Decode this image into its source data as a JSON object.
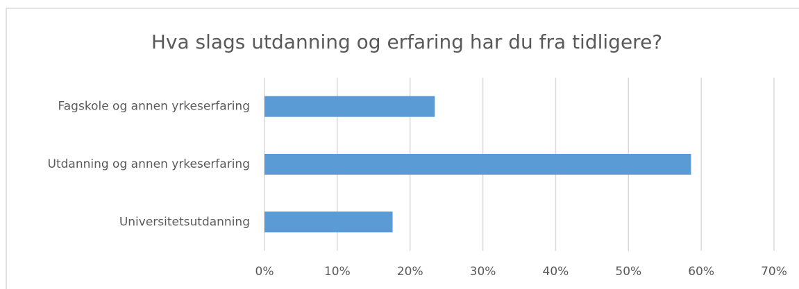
{
  "chart_data": {
    "type": "bar",
    "orientation": "horizontal",
    "title": "Hva slags utdanning og erfaring har du fra tidligere?",
    "categories": [
      "Fagskole og annen yrkeserfaring",
      "Utdanning og annen yrkeserfaring",
      "Universitetsutdanning"
    ],
    "values": [
      23.4,
      58.6,
      17.6
    ],
    "color": "#5b9bd5",
    "xlim": [
      0,
      70
    ],
    "xticks": [
      {
        "value": 0,
        "label": "0%"
      },
      {
        "value": 10,
        "label": "10%"
      },
      {
        "value": 20,
        "label": "20%"
      },
      {
        "value": 30,
        "label": "30%"
      },
      {
        "value": 40,
        "label": "40%"
      },
      {
        "value": 50,
        "label": "50%"
      },
      {
        "value": 60,
        "label": "60%"
      },
      {
        "value": 70,
        "label": "70%"
      }
    ],
    "grid": true
  }
}
